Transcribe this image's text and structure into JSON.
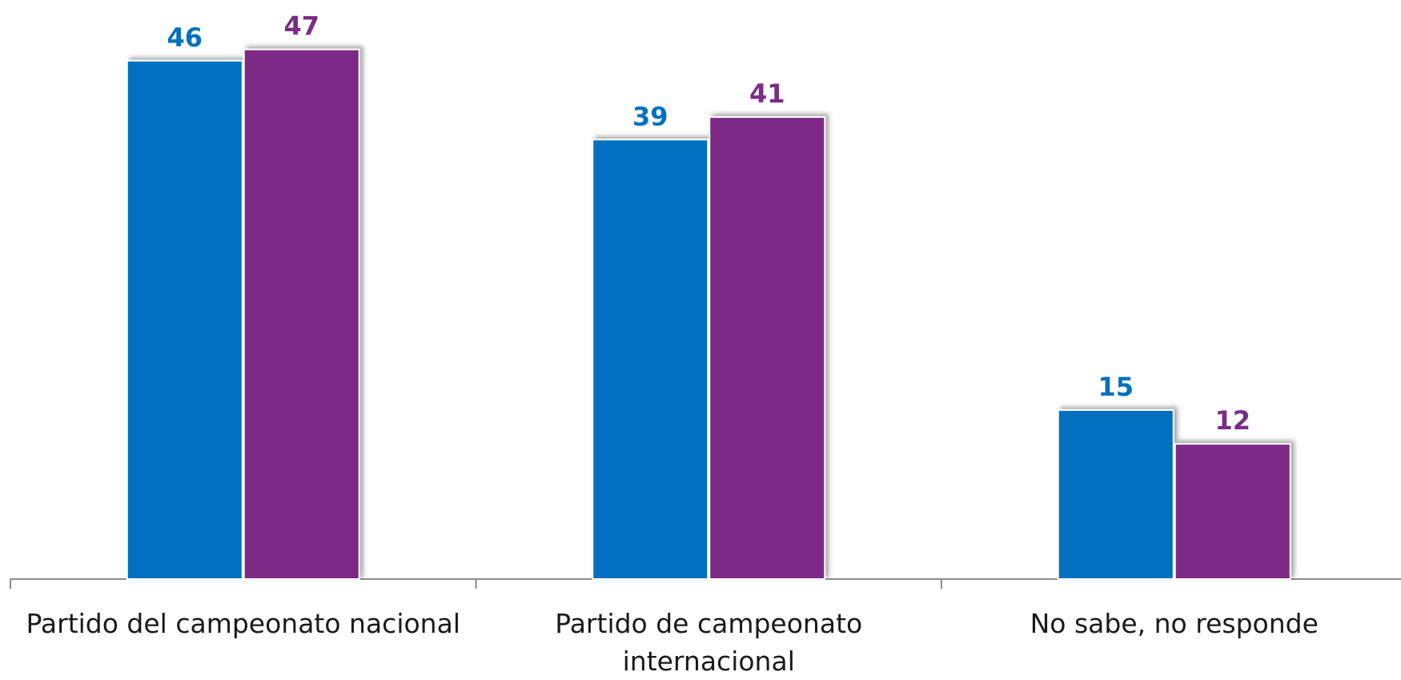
{
  "chart_data": {
    "type": "bar",
    "categories": [
      "Partido del campeonato nacional",
      "Partido de campeonato internacional",
      "No sabe, no responde"
    ],
    "series": [
      {
        "color": "#0070c0",
        "values": [
          46,
          39,
          15
        ]
      },
      {
        "color": "#7b2c86",
        "values": [
          47,
          41,
          12
        ]
      }
    ]
  }
}
